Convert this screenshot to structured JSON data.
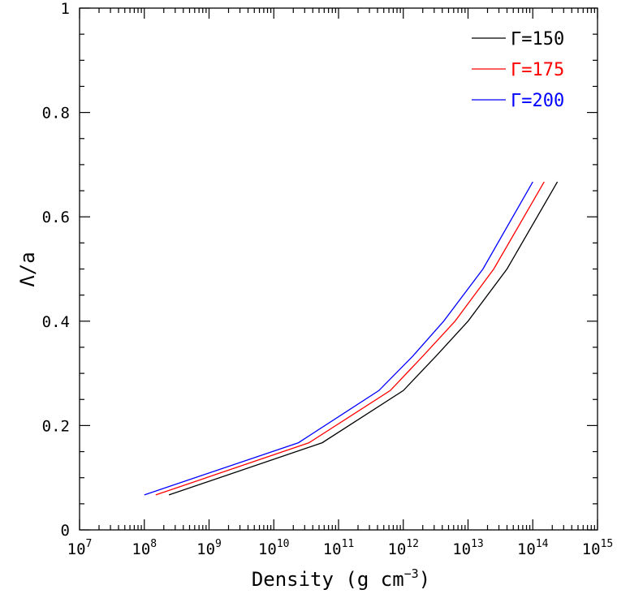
{
  "chart_data": {
    "type": "line",
    "title": "",
    "xlabel": "Density (g cm",
    "xlabel_sup": "−3",
    "xlabel_close": ")",
    "ylabel": "Λ/a",
    "xscale": "log",
    "xlim": [
      10000000,
      1000000000000000
    ],
    "ylim": [
      0,
      1
    ],
    "x_ticks": [
      {
        "value": 10000000,
        "base": "10",
        "exp": "7"
      },
      {
        "value": 100000000,
        "base": "10",
        "exp": "8"
      },
      {
        "value": 1000000000,
        "base": "10",
        "exp": "9"
      },
      {
        "value": 10000000000,
        "base": "10",
        "exp": "10"
      },
      {
        "value": 100000000000,
        "base": "10",
        "exp": "11"
      },
      {
        "value": 1000000000000,
        "base": "10",
        "exp": "12"
      },
      {
        "value": 10000000000000,
        "base": "10",
        "exp": "13"
      },
      {
        "value": 100000000000000,
        "base": "10",
        "exp": "14"
      },
      {
        "value": 1000000000000000,
        "base": "10",
        "exp": "15"
      }
    ],
    "y_ticks": [
      {
        "value": 0,
        "label": "0"
      },
      {
        "value": 0.2,
        "label": "0.2"
      },
      {
        "value": 0.4,
        "label": "0.4"
      },
      {
        "value": 0.6,
        "label": "0.6"
      },
      {
        "value": 0.8,
        "label": "0.8"
      },
      {
        "value": 1,
        "label": "1"
      }
    ],
    "grid": false,
    "legend_position": "top-right",
    "series": [
      {
        "name": "Γ=150",
        "color": "#000000",
        "x": [
          240000000,
          56000000000,
          1000000000000,
          3200000000000,
          10000000000000,
          40000000000000,
          240000000000000
        ],
        "y": [
          0.067,
          0.167,
          0.267,
          0.333,
          0.4,
          0.5,
          0.667
        ]
      },
      {
        "name": "Γ=175",
        "color": "#ff0000",
        "x": [
          150000000,
          35000000000,
          630000000000,
          2000000000000,
          6300000000000,
          25000000000000,
          150000000000000
        ],
        "y": [
          0.067,
          0.167,
          0.267,
          0.333,
          0.4,
          0.5,
          0.667
        ]
      },
      {
        "name": "Γ=200",
        "color": "#0000ff",
        "x": [
          100000000,
          24000000000,
          420000000000,
          1400000000000,
          4200000000000,
          17000000000000,
          100000000000000
        ],
        "y": [
          0.067,
          0.167,
          0.267,
          0.333,
          0.4,
          0.5,
          0.667
        ]
      }
    ]
  }
}
